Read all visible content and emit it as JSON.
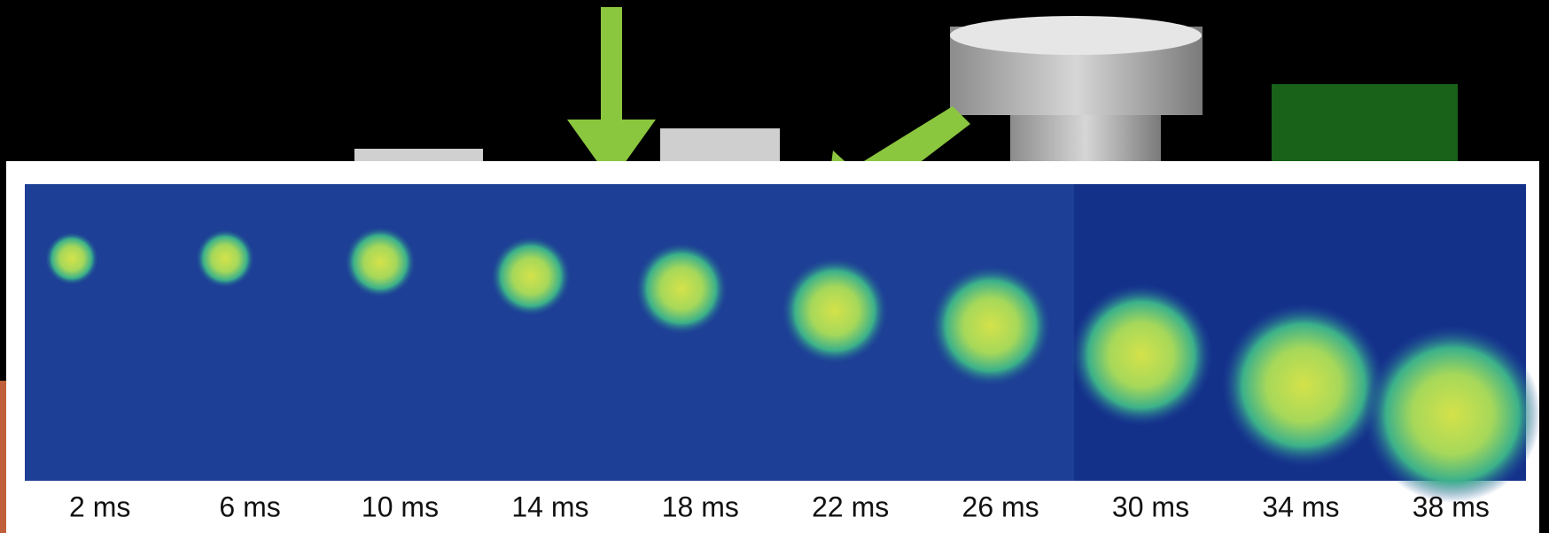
{
  "frame_labels": [
    "2 ms",
    "6 ms",
    "10 ms",
    "14 ms",
    "18 ms",
    "22 ms",
    "26 ms",
    "30 ms",
    "34 ms",
    "38 ms"
  ]
}
